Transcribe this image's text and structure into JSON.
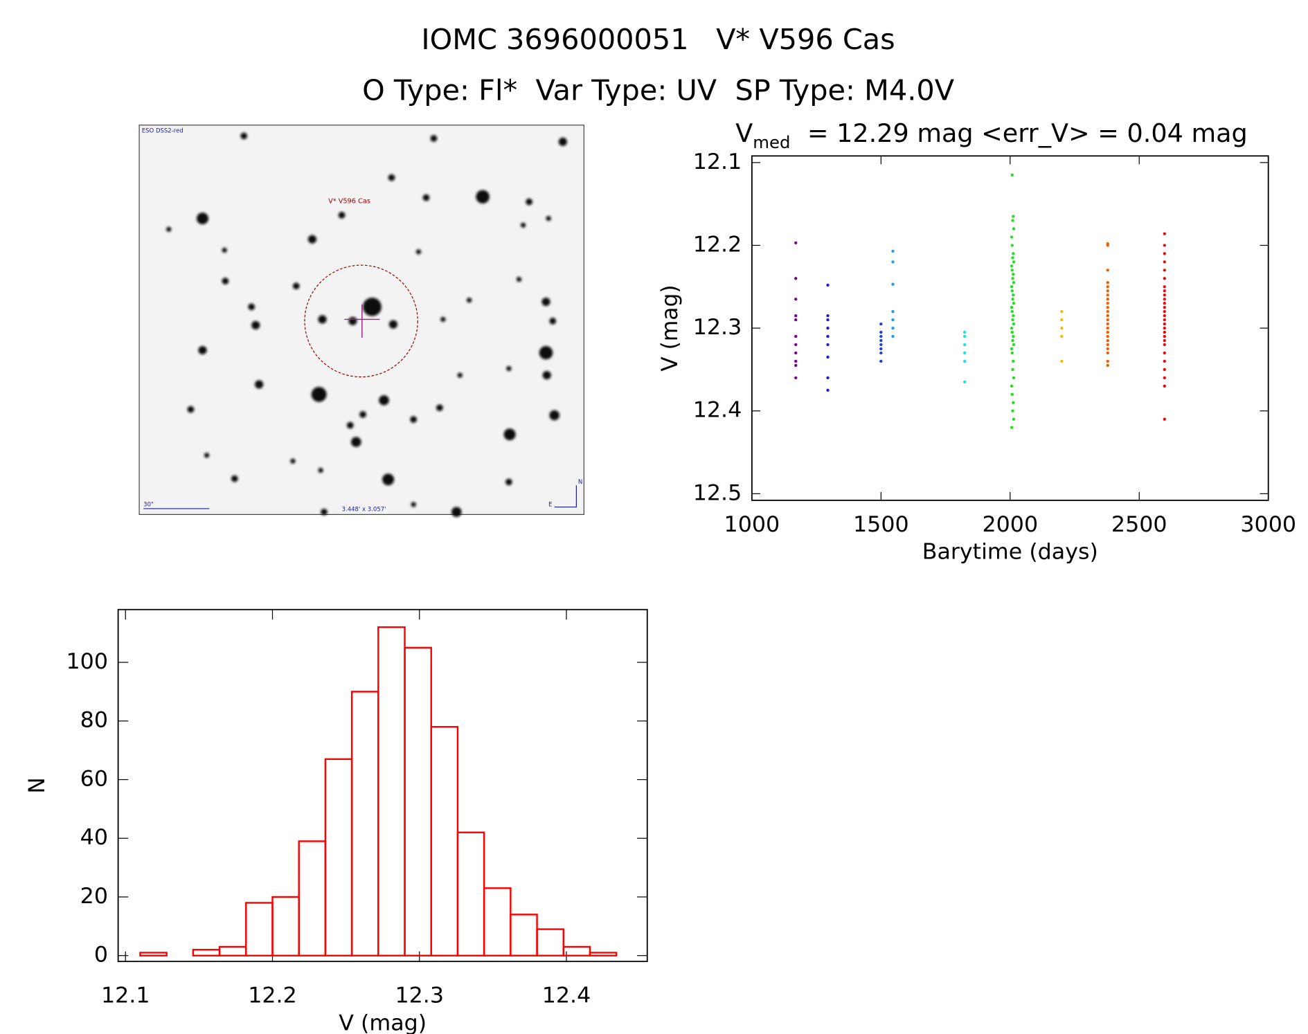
{
  "header": {
    "title": "IOMC 3696000051   V* V596 Cas",
    "subtitle": "O Type: Fl*  Var Type: UV  SP Type: M4.0V"
  },
  "finder": {
    "survey": "ESO DSS2-red",
    "target": "V* V596 Cas",
    "scale": "30\"",
    "field": "3.448' x 3.057'",
    "north": "N",
    "east": "E"
  },
  "chart_data": [
    {
      "type": "scatter",
      "title": "V",
      "title_subscript": "med",
      "title_rest": "= 12.29 mag <err_V> = 0.04 mag",
      "x_label": "Barytime (days)",
      "y_label": "V (mag)",
      "xlim": [
        1000,
        3000
      ],
      "xticks": [
        1000,
        1500,
        2000,
        2500,
        3000
      ],
      "ylim": [
        12.092,
        12.508
      ],
      "yticks": [
        12.1,
        12.2,
        12.3,
        12.4,
        12.5
      ],
      "y_inverted": true,
      "series": [
        {
          "color": "#7a0090",
          "x": [
            1170,
            1170,
            1170,
            1170,
            1170,
            1170,
            1170,
            1170,
            1170,
            1170,
            1170
          ],
          "values": [
            12.197,
            12.24,
            12.265,
            12.285,
            12.29,
            12.31,
            12.32,
            12.33,
            12.34,
            12.345,
            12.36
          ]
        },
        {
          "color": "#2020c0",
          "x": [
            1294,
            1294,
            1294,
            1294,
            1294,
            1294,
            1294,
            1294,
            1294
          ],
          "values": [
            12.248,
            12.285,
            12.29,
            12.3,
            12.31,
            12.32,
            12.335,
            12.36,
            12.375
          ]
        },
        {
          "color": "#2040d0",
          "x": [
            1500,
            1500,
            1500,
            1500,
            1500,
            1500,
            1500,
            1500
          ],
          "values": [
            12.295,
            12.305,
            12.31,
            12.315,
            12.32,
            12.325,
            12.33,
            12.34
          ]
        },
        {
          "color": "#20a0e0",
          "x": [
            1546,
            1546,
            1546,
            1546,
            1546,
            1546,
            1546
          ],
          "values": [
            12.207,
            12.22,
            12.247,
            12.28,
            12.29,
            12.3,
            12.31
          ]
        },
        {
          "color": "#20e0e0",
          "x": [
            1824,
            1824,
            1824,
            1824,
            1824,
            1824
          ],
          "values": [
            12.305,
            12.31,
            12.32,
            12.33,
            12.34,
            12.365
          ]
        },
        {
          "color": "#20e020",
          "x": [
            2008,
            2012,
            2010,
            2014,
            2006,
            2008,
            2012,
            2010,
            2014,
            2006,
            2008,
            2012,
            2010,
            2014,
            2006,
            2008,
            2012,
            2010,
            2014,
            2006,
            2008,
            2012,
            2010,
            2014,
            2006,
            2008,
            2012,
            2010,
            2014,
            2006,
            2008,
            2012,
            2010,
            2014,
            2006,
            2008,
            2012,
            2010,
            2014,
            2006
          ],
          "values": [
            12.115,
            12.165,
            12.17,
            12.18,
            12.19,
            12.2,
            12.21,
            12.215,
            12.22,
            12.225,
            12.23,
            12.235,
            12.24,
            12.245,
            12.25,
            12.255,
            12.26,
            12.265,
            12.27,
            12.275,
            12.28,
            12.285,
            12.29,
            12.295,
            12.3,
            12.305,
            12.31,
            12.315,
            12.32,
            12.325,
            12.33,
            12.34,
            12.35,
            12.36,
            12.37,
            12.38,
            12.39,
            12.4,
            12.41,
            12.42
          ]
        },
        {
          "color": "#f0c000",
          "x": [
            2200,
            2200,
            2200,
            2200,
            2200
          ],
          "values": [
            12.28,
            12.29,
            12.3,
            12.31,
            12.34
          ]
        },
        {
          "color": "#f06000",
          "x": [
            2378,
            2378,
            2378,
            2378,
            2378,
            2378,
            2378,
            2378,
            2378,
            2378,
            2378,
            2378,
            2378,
            2378,
            2378,
            2378,
            2378,
            2378,
            2378,
            2378,
            2378,
            2378,
            2378
          ],
          "values": [
            12.198,
            12.2,
            12.23,
            12.245,
            12.25,
            12.255,
            12.26,
            12.265,
            12.27,
            12.275,
            12.28,
            12.285,
            12.29,
            12.295,
            12.3,
            12.305,
            12.31,
            12.315,
            12.32,
            12.325,
            12.33,
            12.34,
            12.345
          ]
        },
        {
          "color": "#e01010",
          "x": [
            2598,
            2598,
            2598,
            2598,
            2598,
            2598,
            2598,
            2598,
            2598,
            2598,
            2598,
            2598,
            2598,
            2598,
            2598,
            2598,
            2598,
            2598,
            2598,
            2598,
            2598,
            2598,
            2598,
            2598,
            2598,
            2598,
            2598
          ],
          "values": [
            12.186,
            12.2,
            12.21,
            12.22,
            12.23,
            12.24,
            12.25,
            12.255,
            12.26,
            12.265,
            12.27,
            12.275,
            12.28,
            12.285,
            12.29,
            12.295,
            12.3,
            12.305,
            12.31,
            12.315,
            12.32,
            12.33,
            12.34,
            12.35,
            12.36,
            12.37,
            12.41
          ]
        }
      ]
    },
    {
      "type": "histogram",
      "x_label": "V (mag)",
      "y_label": "N",
      "color": "#ff0000",
      "bins": [
        12.11,
        12.128,
        12.146,
        12.164,
        12.182,
        12.2,
        12.218,
        12.236,
        12.254,
        12.272,
        12.29,
        12.308,
        12.326,
        12.344,
        12.362,
        12.38,
        12.398,
        12.416,
        12.434
      ],
      "values": [
        1,
        0,
        2,
        3,
        18,
        20,
        39,
        67,
        90,
        112,
        105,
        78,
        42,
        23,
        14,
        9,
        3,
        1
      ],
      "xlim": [
        12.095,
        12.455
      ],
      "xticks": [
        12.1,
        12.2,
        12.3,
        12.4
      ],
      "ylim": [
        -2,
        118
      ],
      "yticks": [
        0,
        20,
        40,
        60,
        80,
        100
      ]
    }
  ]
}
